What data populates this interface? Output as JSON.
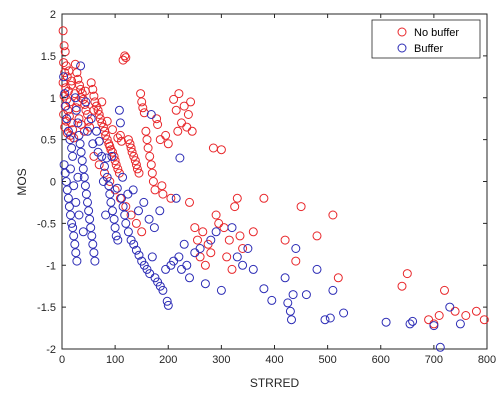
{
  "chart_data": {
    "type": "scatter",
    "title": "",
    "xlabel": "STRRED",
    "ylabel": "MOS",
    "xlim": [
      0,
      800
    ],
    "ylim": [
      -2,
      2
    ],
    "xticks": [
      "0",
      "100",
      "200",
      "300",
      "400",
      "500",
      "600",
      "700",
      "800"
    ],
    "yticks": [
      "-2",
      "-1.5",
      "-1",
      "-0.5",
      "0",
      "0.5",
      "1",
      "1.5",
      "2"
    ],
    "grid": false,
    "legend_position": "top-right",
    "marker": "open-circle",
    "series": [
      {
        "name": "No buffer",
        "color": "#e8262a",
        "points": [
          [
            2,
            1.8
          ],
          [
            4,
            1.62
          ],
          [
            6,
            1.55
          ],
          [
            3,
            1.42
          ],
          [
            8,
            1.38
          ],
          [
            5,
            1.3
          ],
          [
            10,
            1.25
          ],
          [
            2,
            1.18
          ],
          [
            7,
            1.12
          ],
          [
            12,
            1.08
          ],
          [
            4,
            1.02
          ],
          [
            9,
            0.98
          ],
          [
            15,
            0.95
          ],
          [
            6,
            0.9
          ],
          [
            11,
            0.85
          ],
          [
            3,
            0.8
          ],
          [
            14,
            0.78
          ],
          [
            8,
            0.72
          ],
          [
            18,
            0.7
          ],
          [
            5,
            0.65
          ],
          [
            20,
            0.62
          ],
          [
            10,
            0.58
          ],
          [
            16,
            0.55
          ],
          [
            22,
            0.52
          ],
          [
            25,
            1.4
          ],
          [
            28,
            1.3
          ],
          [
            30,
            1.22
          ],
          [
            33,
            1.15
          ],
          [
            35,
            1.1
          ],
          [
            38,
            1.05
          ],
          [
            40,
            0.98
          ],
          [
            43,
            0.92
          ],
          [
            27,
            0.88
          ],
          [
            45,
            0.85
          ],
          [
            48,
            0.8
          ],
          [
            32,
            0.75
          ],
          [
            50,
            0.72
          ],
          [
            36,
            0.68
          ],
          [
            52,
            0.65
          ],
          [
            42,
            0.6
          ],
          [
            55,
            1.18
          ],
          [
            58,
            1.1
          ],
          [
            60,
            1.02
          ],
          [
            62,
            0.95
          ],
          [
            65,
            0.9
          ],
          [
            68,
            0.85
          ],
          [
            70,
            0.8
          ],
          [
            72,
            0.75
          ],
          [
            75,
            0.7
          ],
          [
            78,
            0.65
          ],
          [
            80,
            0.6
          ],
          [
            82,
            0.55
          ],
          [
            85,
            0.5
          ],
          [
            88,
            0.45
          ],
          [
            90,
            0.42
          ],
          [
            92,
            0.38
          ],
          [
            95,
            0.35
          ],
          [
            98,
            0.3
          ],
          [
            100,
            0.25
          ],
          [
            102,
            0.2
          ],
          [
            105,
            0.15
          ],
          [
            108,
            0.1
          ],
          [
            110,
            0.55
          ],
          [
            112,
            0.48
          ],
          [
            115,
            1.45
          ],
          [
            118,
            1.5
          ],
          [
            120,
            1.48
          ],
          [
            125,
            0.5
          ],
          [
            128,
            0.45
          ],
          [
            130,
            0.4
          ],
          [
            132,
            0.35
          ],
          [
            135,
            0.3
          ],
          [
            138,
            0.25
          ],
          [
            140,
            0.2
          ],
          [
            142,
            0.15
          ],
          [
            145,
            0.1
          ],
          [
            148,
            1.05
          ],
          [
            150,
            0.95
          ],
          [
            152,
            0.88
          ],
          [
            155,
            0.82
          ],
          [
            158,
            0.6
          ],
          [
            160,
            0.5
          ],
          [
            162,
            0.4
          ],
          [
            165,
            0.3
          ],
          [
            168,
            0.2
          ],
          [
            170,
            0.1
          ],
          [
            172,
            0.0
          ],
          [
            175,
            -0.1
          ],
          [
            178,
            0.75
          ],
          [
            180,
            0.68
          ],
          [
            185,
            0.5
          ],
          [
            188,
            -0.05
          ],
          [
            190,
            -0.15
          ],
          [
            195,
            0.55
          ],
          [
            200,
            0.45
          ],
          [
            205,
            -0.2
          ],
          [
            210,
            0.98
          ],
          [
            215,
            0.85
          ],
          [
            218,
            0.6
          ],
          [
            220,
            1.05
          ],
          [
            225,
            0.7
          ],
          [
            230,
            0.9
          ],
          [
            235,
            0.65
          ],
          [
            238,
            0.8
          ],
          [
            240,
            -0.25
          ],
          [
            242,
            0.95
          ],
          [
            245,
            0.6
          ],
          [
            250,
            -0.55
          ],
          [
            255,
            -0.7
          ],
          [
            260,
            -0.9
          ],
          [
            265,
            -0.6
          ],
          [
            270,
            -1.0
          ],
          [
            275,
            -0.75
          ],
          [
            280,
            -0.85
          ],
          [
            285,
            0.4
          ],
          [
            290,
            -0.4
          ],
          [
            295,
            -0.5
          ],
          [
            300,
            0.38
          ],
          [
            305,
            -0.55
          ],
          [
            310,
            -0.9
          ],
          [
            315,
            -0.7
          ],
          [
            320,
            -1.05
          ],
          [
            325,
            -0.3
          ],
          [
            330,
            -0.2
          ],
          [
            335,
            -0.65
          ],
          [
            340,
            -0.8
          ],
          [
            360,
            -0.6
          ],
          [
            380,
            -0.2
          ],
          [
            420,
            -0.7
          ],
          [
            440,
            -0.95
          ],
          [
            450,
            -0.3
          ],
          [
            480,
            -0.65
          ],
          [
            510,
            -0.4
          ],
          [
            520,
            -1.15
          ],
          [
            640,
            -1.25
          ],
          [
            650,
            -1.1
          ],
          [
            690,
            -1.65
          ],
          [
            700,
            -1.7
          ],
          [
            710,
            -1.6
          ],
          [
            720,
            -1.3
          ],
          [
            740,
            -1.55
          ],
          [
            760,
            -1.6
          ],
          [
            780,
            -1.55
          ],
          [
            795,
            -1.65
          ],
          [
            60,
            0.3
          ],
          [
            70,
            0.2
          ],
          [
            80,
            0.1
          ],
          [
            90,
            0.0
          ],
          [
            100,
            -0.1
          ],
          [
            110,
            -0.2
          ],
          [
            120,
            -0.3
          ],
          [
            130,
            -0.4
          ],
          [
            140,
            -0.5
          ],
          [
            150,
            -0.6
          ],
          [
            60,
            0.85
          ],
          [
            75,
            0.95
          ],
          [
            85,
            0.72
          ],
          [
            95,
            0.62
          ],
          [
            105,
            0.52
          ],
          [
            18,
            1.2
          ],
          [
            24,
            1.05
          ],
          [
            30,
            0.95
          ],
          [
            36,
            1.0
          ],
          [
            44,
            1.08
          ],
          [
            13,
            1.32
          ],
          [
            17,
            1.15
          ]
        ]
      },
      {
        "name": "Buffer",
        "color": "#2b2bb5",
        "points": [
          [
            3,
            1.25
          ],
          [
            5,
            1.05
          ],
          [
            7,
            0.9
          ],
          [
            9,
            0.75
          ],
          [
            12,
            0.6
          ],
          [
            15,
            0.5
          ],
          [
            18,
            0.4
          ],
          [
            20,
            0.3
          ],
          [
            4,
            0.2
          ],
          [
            6,
            0.1
          ],
          [
            8,
            0.0
          ],
          [
            10,
            -0.1
          ],
          [
            12,
            -0.2
          ],
          [
            14,
            -0.3
          ],
          [
            16,
            -0.4
          ],
          [
            18,
            -0.5
          ],
          [
            20,
            -0.55
          ],
          [
            22,
            -0.65
          ],
          [
            24,
            -0.75
          ],
          [
            26,
            -0.85
          ],
          [
            28,
            -0.95
          ],
          [
            25,
            1.0
          ],
          [
            27,
            0.85
          ],
          [
            30,
            0.7
          ],
          [
            32,
            0.55
          ],
          [
            34,
            0.45
          ],
          [
            36,
            0.35
          ],
          [
            38,
            0.25
          ],
          [
            40,
            0.15
          ],
          [
            42,
            0.05
          ],
          [
            44,
            -0.05
          ],
          [
            46,
            -0.15
          ],
          [
            48,
            -0.25
          ],
          [
            50,
            -0.35
          ],
          [
            52,
            -0.45
          ],
          [
            54,
            -0.55
          ],
          [
            56,
            -0.65
          ],
          [
            58,
            -0.75
          ],
          [
            60,
            -0.85
          ],
          [
            62,
            -0.95
          ],
          [
            35,
            1.38
          ],
          [
            45,
            0.95
          ],
          [
            55,
            0.75
          ],
          [
            65,
            0.6
          ],
          [
            70,
            0.48
          ],
          [
            75,
            0.3
          ],
          [
            80,
            0.18
          ],
          [
            85,
            0.05
          ],
          [
            88,
            -0.05
          ],
          [
            90,
            -0.15
          ],
          [
            92,
            -0.25
          ],
          [
            95,
            -0.35
          ],
          [
            98,
            -0.45
          ],
          [
            100,
            -0.55
          ],
          [
            102,
            -0.65
          ],
          [
            105,
            -0.7
          ],
          [
            108,
            0.85
          ],
          [
            110,
            0.7
          ],
          [
            112,
            -0.2
          ],
          [
            115,
            -0.3
          ],
          [
            118,
            -0.4
          ],
          [
            120,
            -0.5
          ],
          [
            125,
            -0.6
          ],
          [
            130,
            -0.7
          ],
          [
            135,
            -0.75
          ],
          [
            140,
            -0.82
          ],
          [
            145,
            -0.88
          ],
          [
            150,
            -0.95
          ],
          [
            155,
            -1.0
          ],
          [
            160,
            -1.05
          ],
          [
            165,
            -1.1
          ],
          [
            168,
            0.8
          ],
          [
            170,
            -0.9
          ],
          [
            175,
            -1.15
          ],
          [
            180,
            -1.2
          ],
          [
            185,
            -1.25
          ],
          [
            190,
            -1.3
          ],
          [
            195,
            -1.05
          ],
          [
            198,
            -1.43
          ],
          [
            200,
            -1.48
          ],
          [
            205,
            -1.0
          ],
          [
            210,
            -0.95
          ],
          [
            215,
            -0.2
          ],
          [
            220,
            -0.9
          ],
          [
            222,
            0.28
          ],
          [
            225,
            -1.05
          ],
          [
            230,
            -0.75
          ],
          [
            235,
            -1.0
          ],
          [
            240,
            -1.15
          ],
          [
            250,
            -0.85
          ],
          [
            260,
            -0.8
          ],
          [
            270,
            -1.22
          ],
          [
            280,
            -0.7
          ],
          [
            290,
            -0.6
          ],
          [
            300,
            -1.3
          ],
          [
            320,
            -0.55
          ],
          [
            330,
            -0.9
          ],
          [
            340,
            -1.0
          ],
          [
            350,
            -0.8
          ],
          [
            360,
            -1.05
          ],
          [
            380,
            -1.28
          ],
          [
            395,
            -1.42
          ],
          [
            420,
            -1.15
          ],
          [
            425,
            -1.45
          ],
          [
            430,
            -1.55
          ],
          [
            432,
            -1.65
          ],
          [
            435,
            -1.35
          ],
          [
            440,
            -0.8
          ],
          [
            460,
            -1.35
          ],
          [
            480,
            -1.05
          ],
          [
            495,
            -1.65
          ],
          [
            505,
            -1.63
          ],
          [
            510,
            -1.3
          ],
          [
            530,
            -1.57
          ],
          [
            610,
            -1.68
          ],
          [
            655,
            -1.7
          ],
          [
            660,
            -1.67
          ],
          [
            700,
            -1.72
          ],
          [
            712,
            -1.98
          ],
          [
            730,
            -1.5
          ],
          [
            750,
            -1.7
          ],
          [
            48,
            0.6
          ],
          [
            58,
            0.45
          ],
          [
            68,
            0.35
          ],
          [
            78,
            0.0
          ],
          [
            82,
            -0.4
          ],
          [
            84,
            0.28
          ],
          [
            94,
            0.3
          ],
          [
            104,
            -0.08
          ],
          [
            114,
            0.05
          ],
          [
            124,
            -0.15
          ],
          [
            134,
            -0.1
          ],
          [
            144,
            -0.35
          ],
          [
            154,
            -0.25
          ],
          [
            164,
            -0.45
          ],
          [
            174,
            -0.55
          ],
          [
            184,
            -0.35
          ],
          [
            26,
            -0.25
          ],
          [
            32,
            -0.4
          ],
          [
            40,
            -0.6
          ],
          [
            16,
            0.15
          ],
          [
            22,
            -0.05
          ],
          [
            30,
            0.05
          ]
        ]
      }
    ]
  }
}
